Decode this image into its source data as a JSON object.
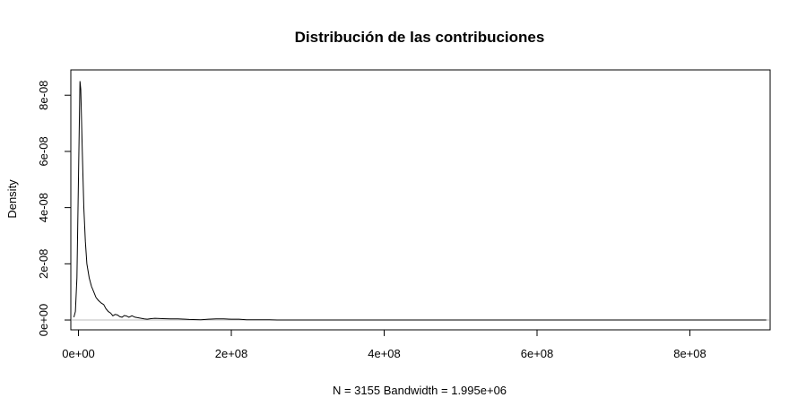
{
  "chart_data": {
    "type": "line",
    "title": "Distribución de las contribuciones",
    "xlabel": "N = 3155   Bandwidth = 1.995e+06",
    "ylabel": "Density",
    "xlim": [
      -10000000,
      905000000
    ],
    "ylim": [
      -3.5e-09,
      8.9e-08
    ],
    "x_ticks": [
      0,
      200000000,
      400000000,
      600000000,
      800000000
    ],
    "x_tick_labels": [
      "0e+00",
      "2e+08",
      "4e+08",
      "6e+08",
      "8e+08"
    ],
    "y_ticks": [
      0,
      2e-08,
      4e-08,
      6e-08,
      8e-08
    ],
    "y_tick_labels": [
      "0e+00",
      "2e-08",
      "4e-08",
      "6e-08",
      "8e-08"
    ],
    "baseline": 0,
    "baseline_color": "#bebebe",
    "grid": false,
    "series": [
      {
        "color": "#000000",
        "points": [
          [
            -6000000,
            1e-09
          ],
          [
            -4000000,
            3e-09
          ],
          [
            -2000000,
            1.5e-08
          ],
          [
            0,
            5e-08
          ],
          [
            2000000,
            8.5e-08
          ],
          [
            3000000,
            8.2e-08
          ],
          [
            5000000,
            6e-08
          ],
          [
            7000000,
            4e-08
          ],
          [
            9000000,
            2.8e-08
          ],
          [
            11000000,
            2e-08
          ],
          [
            14000000,
            1.5e-08
          ],
          [
            17000000,
            1.2e-08
          ],
          [
            20000000,
            1e-08
          ],
          [
            23000000,
            8e-09
          ],
          [
            26000000,
            7e-09
          ],
          [
            30000000,
            6e-09
          ],
          [
            33000000,
            5.5e-09
          ],
          [
            36000000,
            4e-09
          ],
          [
            39000000,
            3e-09
          ],
          [
            42000000,
            2.5e-09
          ],
          [
            45000000,
            1.5e-09
          ],
          [
            48000000,
            2e-09
          ],
          [
            51000000,
            1.8e-09
          ],
          [
            54000000,
            1.2e-09
          ],
          [
            57000000,
            1e-09
          ],
          [
            60000000,
            1.6e-09
          ],
          [
            63000000,
            1.4e-09
          ],
          [
            66000000,
            1e-09
          ],
          [
            70000000,
            1.5e-09
          ],
          [
            74000000,
            1e-09
          ],
          [
            78000000,
            8e-10
          ],
          [
            82000000,
            6e-10
          ],
          [
            86000000,
            4e-10
          ],
          [
            90000000,
            3e-10
          ],
          [
            95000000,
            5e-10
          ],
          [
            100000000,
            6e-10
          ],
          [
            110000000,
            5e-10
          ],
          [
            120000000,
            4e-10
          ],
          [
            130000000,
            4e-10
          ],
          [
            140000000,
            3e-10
          ],
          [
            145000000,
            2e-10
          ],
          [
            160000000,
            1e-10
          ],
          [
            170000000,
            3e-10
          ],
          [
            180000000,
            4e-10
          ],
          [
            190000000,
            4e-10
          ],
          [
            200000000,
            3e-10
          ],
          [
            210000000,
            3e-10
          ],
          [
            220000000,
            1e-10
          ],
          [
            240000000,
            1e-10
          ],
          [
            250000000,
            1e-10
          ],
          [
            260000000,
            0
          ],
          [
            900000000,
            0
          ]
        ]
      }
    ]
  }
}
